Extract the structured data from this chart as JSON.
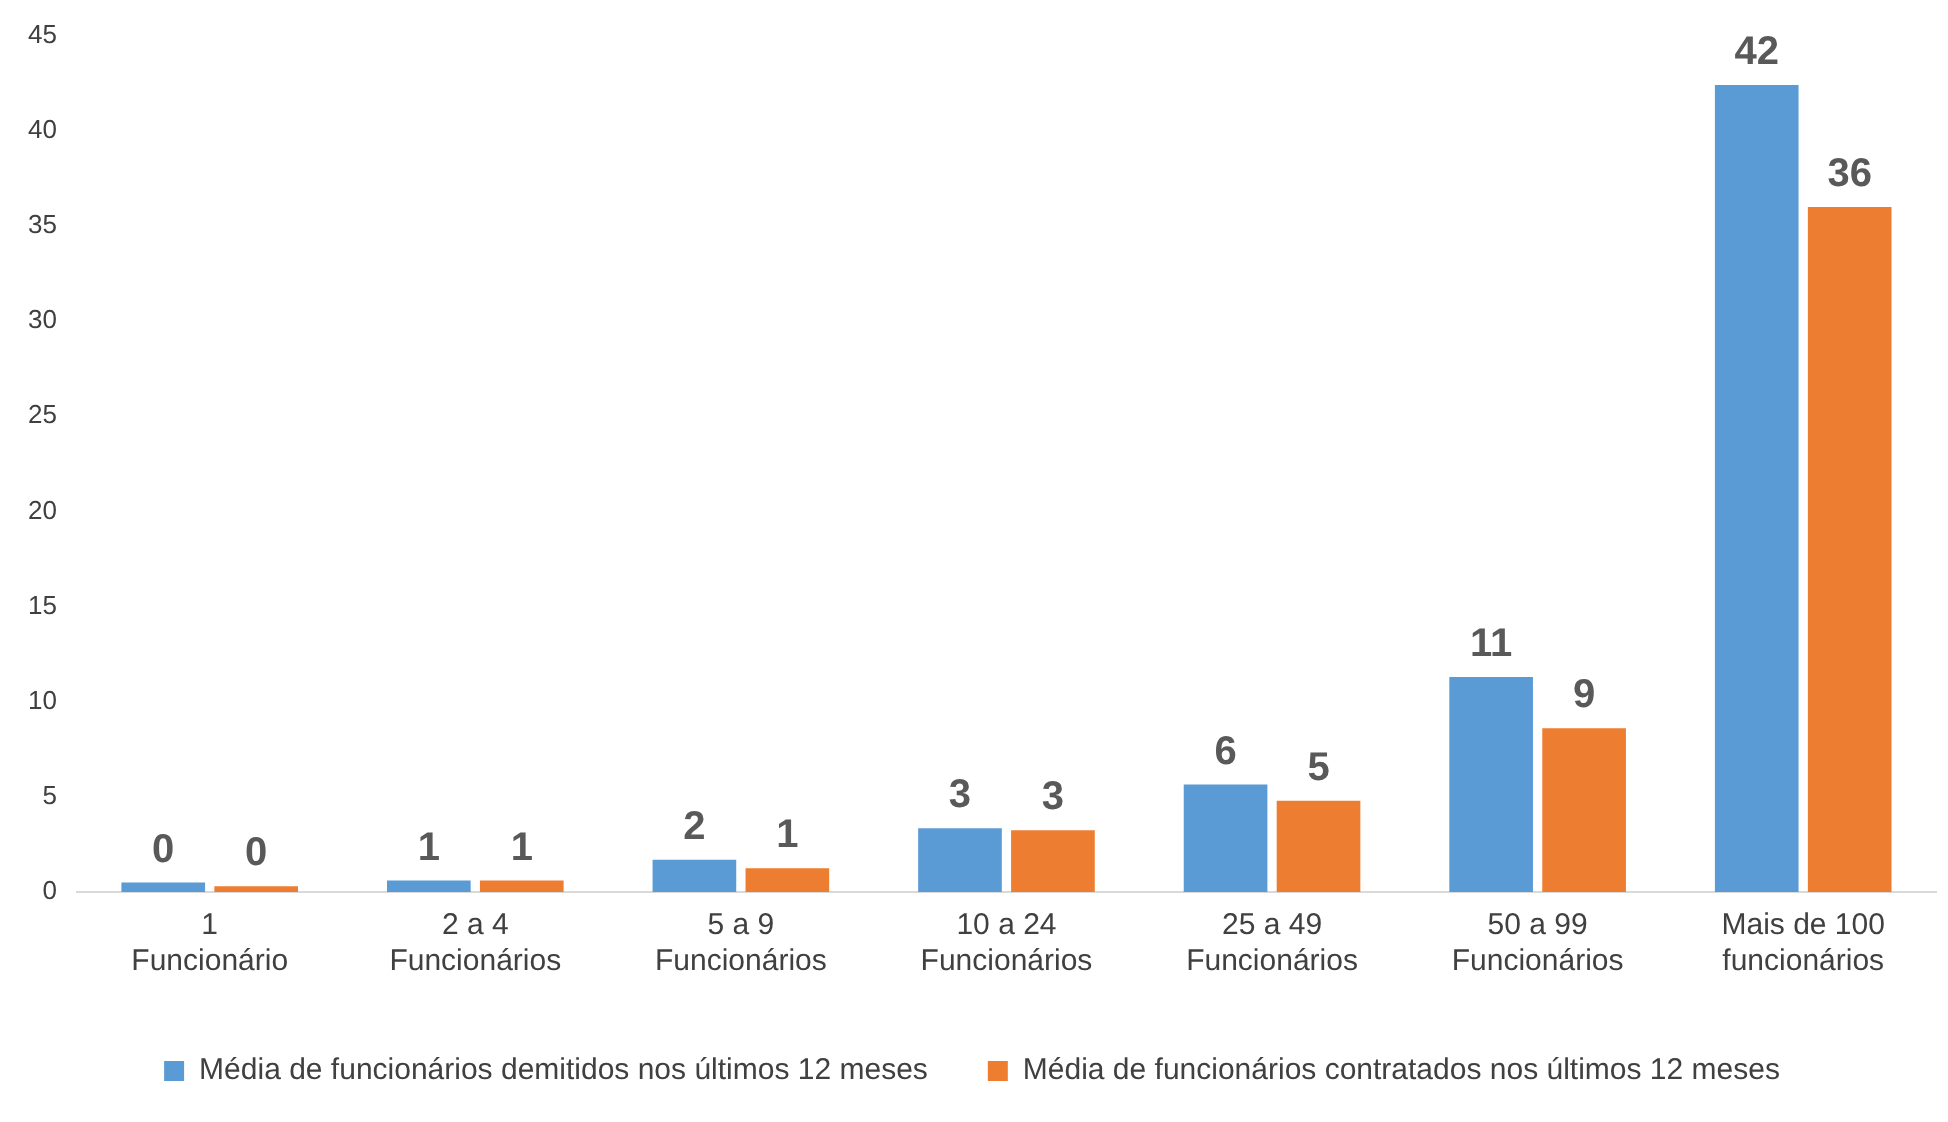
{
  "chart_data": {
    "type": "bar",
    "categories": [
      "1\nFuncionário",
      "2 a 4\nFuncionários",
      "5 a 9\nFuncionários",
      "10 a 24\nFuncionários",
      "25 a 49\nFuncionários",
      "50 a 99\nFuncionários",
      "Mais de 100\nfuncionários"
    ],
    "series": [
      {
        "name": "Média de funcionários demitidos nos últimos 12 meses",
        "color": "#5b9bd5",
        "values": [
          0.5,
          0.6,
          1.7,
          3.35,
          5.65,
          11.3,
          42.4
        ],
        "value_labels": [
          "0",
          "1",
          "2",
          "3",
          "6",
          "11",
          "42"
        ]
      },
      {
        "name": "Média de funcionários contratados nos últimos 12 meses",
        "color": "#ed7d31",
        "values": [
          0.3,
          0.6,
          1.25,
          3.25,
          4.8,
          8.6,
          36.0
        ],
        "value_labels": [
          "0",
          "1",
          "1",
          "3",
          "5",
          "9",
          "36"
        ]
      }
    ],
    "ylim": [
      0,
      45
    ],
    "yticks": [
      0,
      5,
      10,
      15,
      20,
      25,
      30,
      35,
      40,
      45
    ],
    "grid": false,
    "legend": "bottom"
  }
}
